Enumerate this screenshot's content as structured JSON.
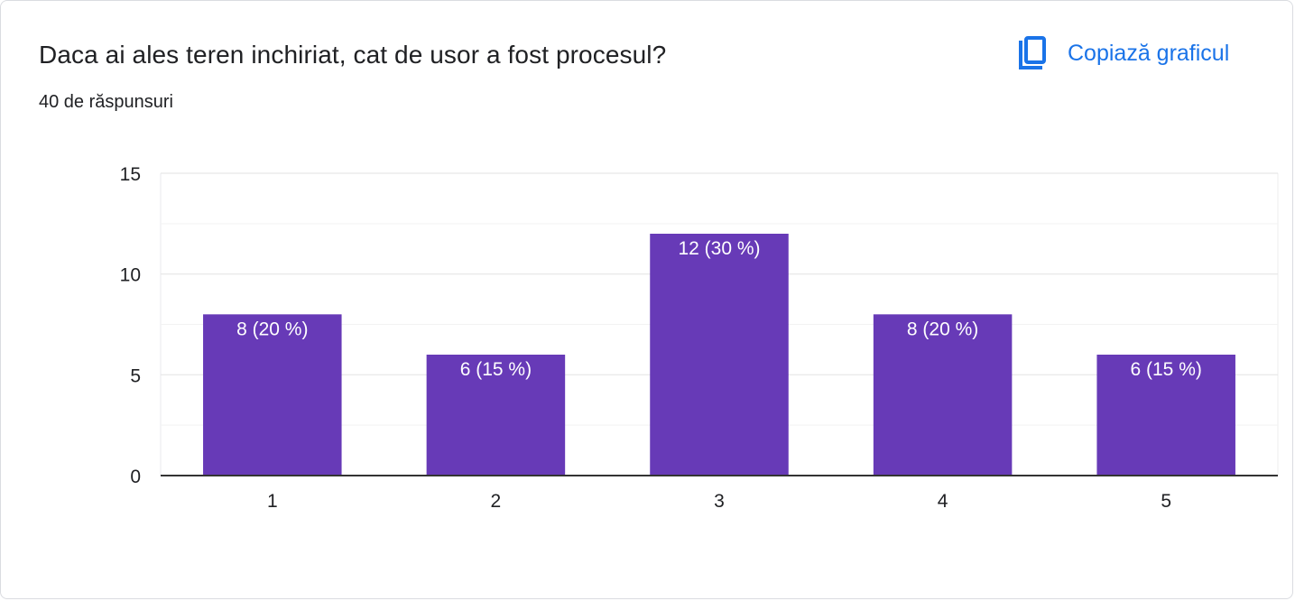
{
  "header": {
    "question": "Daca ai ales teren inchiriat, cat de usor a fost procesul?",
    "response_count": "40 de răspunsuri",
    "copy_chart_label": "Copiază graficul",
    "copy_icon": "copy-icon"
  },
  "colors": {
    "bar": "#673ab7",
    "accent": "#1a73e8"
  },
  "chart_data": {
    "type": "bar",
    "categories": [
      "1",
      "2",
      "3",
      "4",
      "5"
    ],
    "values": [
      8,
      6,
      12,
      8,
      6
    ],
    "data_labels": [
      "8 (20 %)",
      "6 (15 %)",
      "12 (30 %)",
      "8 (20 %)",
      "6 (15 %)"
    ],
    "yticks": [
      0,
      5,
      10,
      15
    ],
    "ylim": [
      0,
      15
    ],
    "title": "Daca ai ales teren inchiriat, cat de usor a fost procesul?",
    "xlabel": "",
    "ylabel": "",
    "grid": true,
    "legend": "none"
  }
}
